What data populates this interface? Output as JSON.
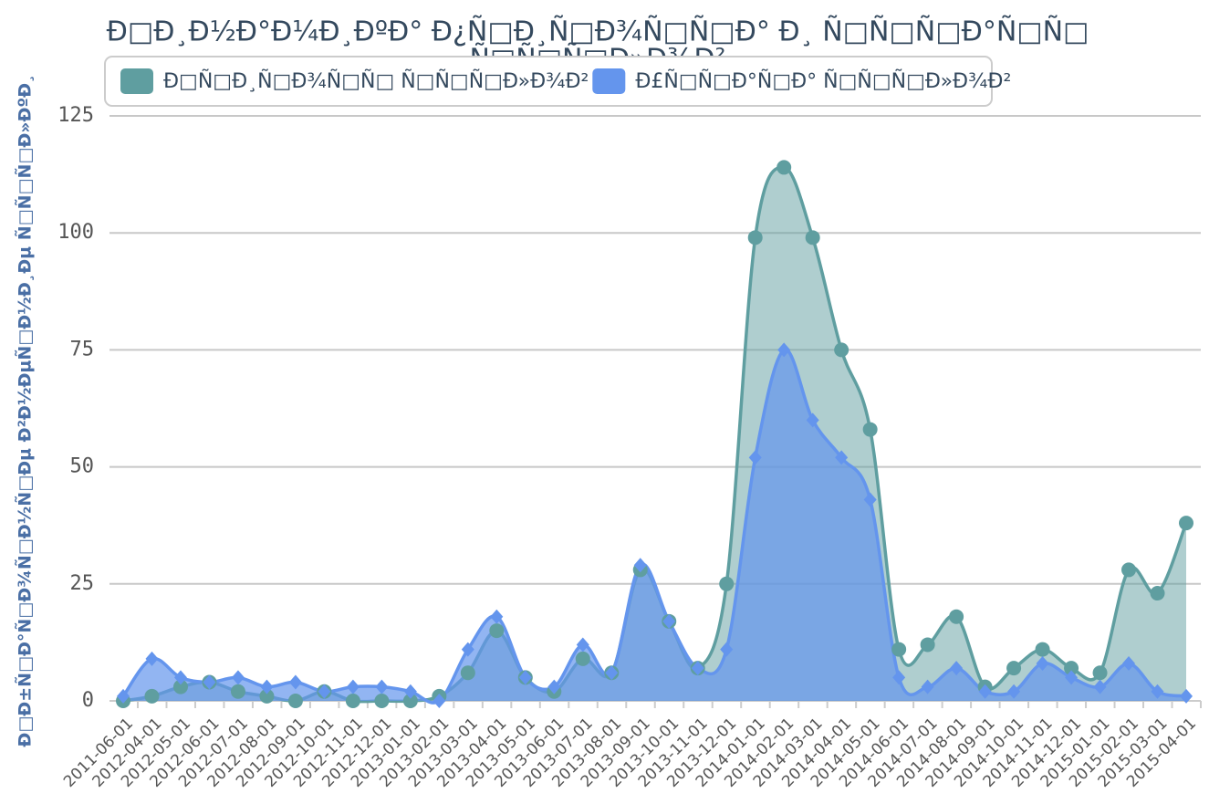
{
  "chart_data": {
    "type": "area",
    "title": [
      "Ð□Ð¸Ð½Ð°Ð¼Ð¸ÐºÐ° Ð¿Ñ□Ð¸Ñ□Ð¾Ñ□Ñ□Ð° Ð¸ Ñ□Ñ□Ñ□Ð°Ñ□Ñ□",
      "Ñ□Ñ□Ñ□Ð»Ð¾Ð²"
    ],
    "y_label": "Ð□Ð±Ñ□Ð°Ñ□Ð¾Ñ□Ð½Ñ□Ðµ Ð²Ð½ÐµÑ□Ð½Ð¸Ðµ Ñ□Ñ□Ñ□Ð»ÐºÐ¸",
    "categories": [
      "2011-06-01",
      "2012-04-01",
      "2012-05-01",
      "2012-06-01",
      "2012-07-01",
      "2012-08-01",
      "2012-09-01",
      "2012-10-01",
      "2012-11-01",
      "2012-12-01",
      "2013-01-01",
      "2013-02-01",
      "2013-03-01",
      "2013-04-01",
      "2013-05-01",
      "2013-06-01",
      "2013-07-01",
      "2013-08-01",
      "2013-09-01",
      "2013-10-01",
      "2013-11-01",
      "2013-12-01",
      "2014-01-01",
      "2014-02-01",
      "2014-03-01",
      "2014-04-01",
      "2014-05-01",
      "2014-06-01",
      "2014-07-01",
      "2014-08-01",
      "2014-09-01",
      "2014-10-01",
      "2014-11-01",
      "2014-12-01",
      "2015-01-01",
      "2015-02-01",
      "2015-03-01",
      "2015-04-01"
    ],
    "series": [
      {
        "name": "Ð□Ñ□Ð¸Ñ□Ð¾Ñ□Ñ□ Ñ□Ñ□Ñ□Ð»Ð¾Ð²",
        "color": "#5f9ea0",
        "marker": "circle",
        "values": [
          0,
          1,
          3,
          4,
          2,
          1,
          0,
          2,
          0,
          0,
          0,
          1,
          6,
          15,
          5,
          2,
          9,
          6,
          28,
          17,
          7,
          25,
          99,
          114,
          99,
          75,
          58,
          11,
          12,
          18,
          3,
          7,
          11,
          7,
          6,
          28,
          23,
          38
        ]
      },
      {
        "name": "Ð£Ñ□Ñ□Ð°Ñ□Ð° Ñ□Ñ□Ñ□Ð»Ð¾Ð²",
        "color": "#6495ed",
        "marker": "diamond",
        "values": [
          1,
          9,
          5,
          4,
          5,
          3,
          4,
          2,
          3,
          3,
          2,
          0,
          11,
          18,
          5,
          3,
          12,
          6,
          29,
          17,
          7,
          11,
          52,
          75,
          60,
          52,
          43,
          5,
          3,
          7,
          2,
          2,
          8,
          5,
          3,
          8,
          2,
          1
        ]
      }
    ],
    "ylim": [
      0,
      125
    ],
    "yticks": [
      0,
      25,
      50,
      75,
      100,
      125
    ],
    "grid": true
  }
}
